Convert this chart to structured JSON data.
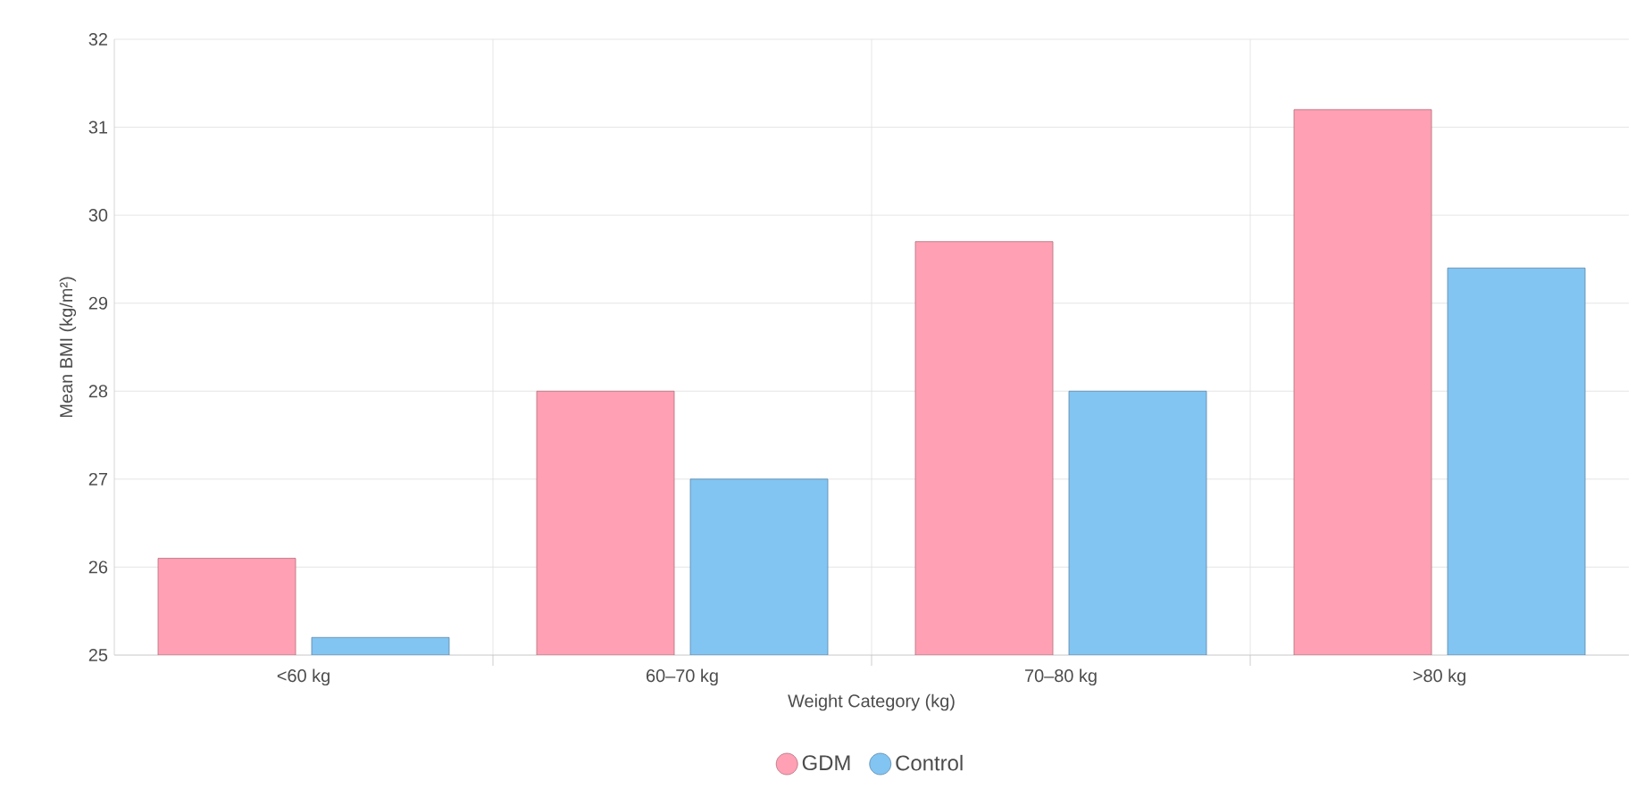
{
  "chart_data": {
    "type": "bar",
    "xlabel": "Weight Category (kg)",
    "ylabel": "Mean BMI (kg/m²)",
    "categories": [
      "<60 kg",
      "60–70 kg",
      "70–80 kg",
      ">80 kg"
    ],
    "series": [
      {
        "name": "GDM",
        "color": "#ffa0b4",
        "values": [
          26.1,
          28,
          29.7,
          31.2
        ]
      },
      {
        "name": "Control",
        "color": "#82c4f2",
        "values": [
          25.2,
          27,
          28,
          29.4
        ]
      }
    ],
    "ylim": [
      25,
      32
    ],
    "yticks": [
      25,
      26,
      27,
      28,
      29,
      30,
      31,
      32
    ],
    "grid": true,
    "legend": "bottom"
  }
}
